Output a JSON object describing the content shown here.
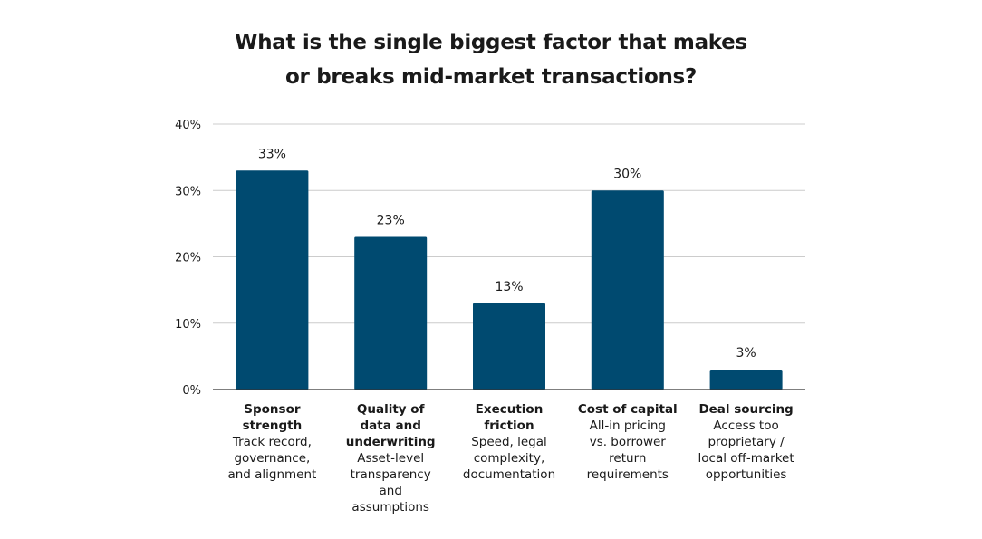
{
  "chart_data": {
    "type": "bar",
    "title": [
      "What is the single biggest factor that makes",
      "or breaks mid-market transactions?"
    ],
    "xlabel": "",
    "ylabel": "",
    "ylim": [
      0,
      40
    ],
    "yticks": [
      0,
      10,
      20,
      30,
      40
    ],
    "ytick_labels": [
      "0%",
      "10%",
      "20%",
      "30%",
      "40%"
    ],
    "grid": true,
    "bar_color": "#004a70",
    "categories": [
      {
        "name": [
          "Sponsor",
          "strength"
        ],
        "desc": [
          "Track record,",
          "governance,",
          "and alignment"
        ]
      },
      {
        "name": [
          "Quality of",
          "data and",
          "underwriting"
        ],
        "desc": [
          "Asset-level",
          "transparency",
          "and",
          "assumptions"
        ]
      },
      {
        "name": [
          "Execution",
          "friction"
        ],
        "desc": [
          "Speed, legal",
          "complexity,",
          "documentation"
        ]
      },
      {
        "name": [
          "Cost of capital"
        ],
        "desc": [
          "All-in pricing",
          "vs. borrower",
          "return",
          "requirements"
        ]
      },
      {
        "name": [
          "Deal sourcing"
        ],
        "desc": [
          "Access too",
          "proprietary /",
          "local off-market",
          "opportunities"
        ]
      }
    ],
    "values": [
      33,
      23,
      13,
      30,
      3
    ],
    "data_labels": [
      "33%",
      "23%",
      "13%",
      "30%",
      "3%"
    ]
  }
}
